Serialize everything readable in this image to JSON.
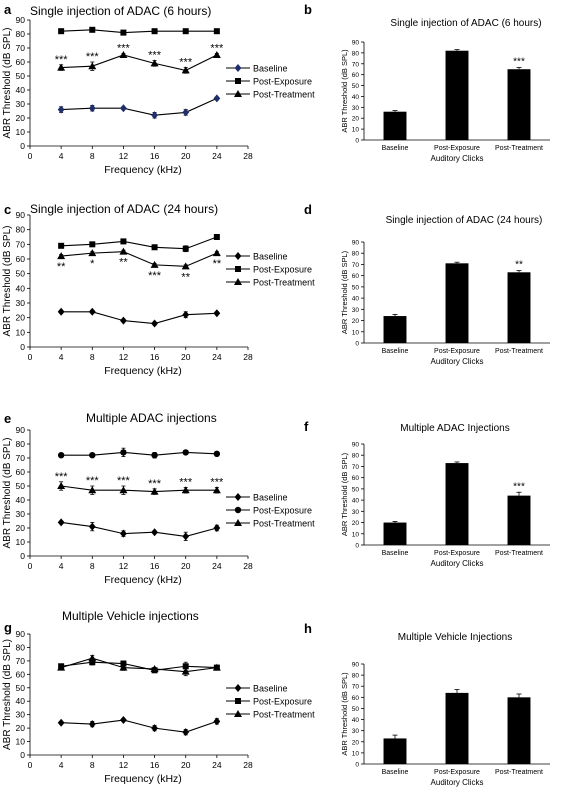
{
  "figure": {
    "panels": [
      {
        "letter": "a",
        "title": "Single injection of ADAC (6 hours)"
      },
      {
        "letter": "b",
        "title": "Single injection of ADAC (6 hours)"
      },
      {
        "letter": "c",
        "title": "Single injection of ADAC (24 hours)"
      },
      {
        "letter": "d",
        "title": "Single injection of ADAC (24 hours)"
      },
      {
        "letter": "e",
        "title": "Multiple ADAC injections"
      },
      {
        "letter": "f",
        "title": "Multiple ADAC Injections"
      },
      {
        "letter": "g",
        "title": "Multiple Vehicle injections"
      },
      {
        "letter": "h",
        "title": "Multiple Vehicle Injections"
      }
    ]
  },
  "colors": {
    "ink": "#000000",
    "baseline_marker_a": "#1f2f6b",
    "grid": "#999999"
  },
  "chart_data": [
    {
      "panel": "a",
      "type": "line",
      "title": "Single injection of ADAC (6 hours)",
      "xlabel": "Frequency (kHz)",
      "ylabel": "ABR Threshold (dB SPL)",
      "xlim": [
        0,
        28
      ],
      "ylim": [
        0,
        90
      ],
      "xticks": [
        0,
        4,
        8,
        12,
        16,
        20,
        24,
        28
      ],
      "yticks": [
        0,
        10,
        20,
        30,
        40,
        50,
        60,
        70,
        80,
        90
      ],
      "x": [
        4,
        8,
        12,
        16,
        20,
        24
      ],
      "legend_position": "right",
      "series": [
        {
          "name": "Baseline",
          "marker": "diamond",
          "values": [
            26,
            27,
            27,
            22,
            24,
            34
          ],
          "errors": [
            2,
            2,
            1,
            2,
            2,
            1
          ]
        },
        {
          "name": "Post-Exposure",
          "marker": "square",
          "values": [
            82,
            83,
            81,
            82,
            82,
            82
          ],
          "errors": [
            1,
            1,
            1,
            1,
            1,
            1
          ]
        },
        {
          "name": "Post-Treatment",
          "marker": "triangle",
          "values": [
            56,
            57,
            65,
            59,
            54,
            65
          ],
          "errors": [
            2,
            3,
            1,
            2,
            2,
            1
          ]
        }
      ],
      "annotations": [
        {
          "x": 4,
          "text": "***"
        },
        {
          "x": 8,
          "text": "***"
        },
        {
          "x": 12,
          "text": "***"
        },
        {
          "x": 16,
          "text": "***"
        },
        {
          "x": 20,
          "text": "***"
        },
        {
          "x": 24,
          "text": "***"
        }
      ]
    },
    {
      "panel": "b",
      "type": "bar",
      "title": "Single injection of ADAC (6 hours)",
      "xlabel": "Auditory Clicks",
      "ylabel": "ABR Threshold (dB SPL)",
      "ylim": [
        0,
        90
      ],
      "yticks": [
        0,
        10,
        20,
        30,
        40,
        50,
        60,
        70,
        80,
        90
      ],
      "categories": [
        "Baseline",
        "Post-Exposure",
        "Post-Treatment"
      ],
      "values": [
        26,
        82,
        65
      ],
      "errors": [
        1,
        1,
        1.5
      ],
      "annotations": [
        {
          "category": "Post-Treatment",
          "text": "***"
        }
      ]
    },
    {
      "panel": "c",
      "type": "line",
      "title": "Single injection of ADAC (24 hours)",
      "xlabel": "Frequency (kHz)",
      "ylabel": "ABR Threshold (dB SPL)",
      "xlim": [
        0,
        28
      ],
      "ylim": [
        0,
        90
      ],
      "xticks": [
        0,
        4,
        8,
        12,
        16,
        20,
        24,
        28
      ],
      "yticks": [
        0,
        10,
        20,
        30,
        40,
        50,
        60,
        70,
        80,
        90
      ],
      "x": [
        4,
        8,
        12,
        16,
        20,
        24
      ],
      "legend_position": "right",
      "series": [
        {
          "name": "Baseline",
          "marker": "diamond",
          "values": [
            24,
            24,
            18,
            16,
            22,
            23
          ],
          "errors": [
            1,
            1,
            1,
            1,
            2,
            1
          ]
        },
        {
          "name": "Post-Exposure",
          "marker": "square",
          "values": [
            69,
            70,
            72,
            68,
            67,
            75
          ],
          "errors": [
            1,
            1,
            1,
            1,
            2,
            1
          ]
        },
        {
          "name": "Post-Treatment",
          "marker": "triangle",
          "values": [
            62,
            64,
            65,
            56,
            55,
            64
          ],
          "errors": [
            1,
            1,
            1,
            1,
            1,
            1
          ]
        }
      ],
      "annotations": [
        {
          "x": 4,
          "text": "**"
        },
        {
          "x": 8,
          "text": "*"
        },
        {
          "x": 12,
          "text": "**"
        },
        {
          "x": 16,
          "text": "***"
        },
        {
          "x": 20,
          "text": "**"
        },
        {
          "x": 24,
          "text": "**"
        }
      ]
    },
    {
      "panel": "d",
      "type": "bar",
      "title": "Single injection of ADAC (24 hours)",
      "xlabel": "Auditory Clicks",
      "ylabel": "ABR Threshold (dB SPL)",
      "ylim": [
        0,
        90
      ],
      "yticks": [
        0,
        10,
        20,
        30,
        40,
        50,
        60,
        70,
        80,
        90
      ],
      "categories": [
        "Baseline",
        "Post-Exposure",
        "Post-Treatment"
      ],
      "values": [
        24,
        71,
        63
      ],
      "errors": [
        1.5,
        1,
        1.5
      ],
      "annotations": [
        {
          "category": "Post-Treatment",
          "text": "**"
        }
      ]
    },
    {
      "panel": "e",
      "type": "line",
      "title": "Multiple ADAC injections",
      "xlabel": "Frequency (kHz)",
      "ylabel": "ABR Threshold (dB SPL)",
      "xlim": [
        0,
        28
      ],
      "ylim": [
        0,
        90
      ],
      "xticks": [
        0,
        4,
        8,
        12,
        16,
        20,
        24,
        28
      ],
      "yticks": [
        0,
        10,
        20,
        30,
        40,
        50,
        60,
        70,
        80,
        90
      ],
      "x": [
        4,
        8,
        12,
        16,
        20,
        24
      ],
      "legend_position": "right",
      "series": [
        {
          "name": "Baseline",
          "marker": "diamond",
          "values": [
            24,
            21,
            16,
            17,
            14,
            20
          ],
          "errors": [
            1,
            3,
            2,
            1,
            3,
            2
          ]
        },
        {
          "name": "Post-Exposure",
          "marker": "circle",
          "values": [
            72,
            72,
            74,
            72,
            74,
            73
          ],
          "errors": [
            1,
            1,
            3,
            2,
            1,
            1
          ]
        },
        {
          "name": "Post-Treatment",
          "marker": "triangle",
          "values": [
            50,
            47,
            47,
            46,
            47,
            47
          ],
          "errors": [
            3,
            3,
            3,
            2,
            2,
            2
          ]
        }
      ],
      "annotations": [
        {
          "x": 4,
          "text": "***"
        },
        {
          "x": 8,
          "text": "***"
        },
        {
          "x": 12,
          "text": "***"
        },
        {
          "x": 16,
          "text": "***"
        },
        {
          "x": 20,
          "text": "***"
        },
        {
          "x": 24,
          "text": "***"
        }
      ]
    },
    {
      "panel": "f",
      "type": "bar",
      "title": "Multiple ADAC Injections",
      "xlabel": "Auditory Clicks",
      "ylabel": "ABR Threshold (dB SPL)",
      "ylim": [
        0,
        90
      ],
      "yticks": [
        0,
        10,
        20,
        30,
        40,
        50,
        60,
        70,
        80,
        90
      ],
      "categories": [
        "Baseline",
        "Post-Exposure",
        "Post-Treatment"
      ],
      "values": [
        20,
        73,
        44
      ],
      "errors": [
        1,
        1,
        3
      ],
      "annotations": [
        {
          "category": "Post-Treatment",
          "text": "***"
        }
      ]
    },
    {
      "panel": "g",
      "type": "line",
      "title": "Multiple Vehicle injections",
      "xlabel": "Frequency (kHz)",
      "ylabel": "ABR Threshold (dB SPL)",
      "xlim": [
        0,
        28
      ],
      "ylim": [
        0,
        90
      ],
      "xticks": [
        0,
        4,
        8,
        12,
        16,
        20,
        24,
        28
      ],
      "yticks": [
        0,
        10,
        20,
        30,
        40,
        50,
        60,
        70,
        80,
        90
      ],
      "x": [
        4,
        8,
        12,
        16,
        20,
        24
      ],
      "legend_position": "right",
      "series": [
        {
          "name": "Baseline",
          "marker": "diamond",
          "values": [
            24,
            23,
            26,
            20,
            17,
            25
          ],
          "errors": [
            1,
            2,
            1,
            2,
            2,
            2
          ]
        },
        {
          "name": "Post-Exposure",
          "marker": "square",
          "values": [
            66,
            69,
            68,
            63,
            66,
            65
          ],
          "errors": [
            1,
            2,
            2,
            1,
            3,
            1
          ]
        },
        {
          "name": "Post-Treatment",
          "marker": "triangle",
          "values": [
            65,
            72,
            65,
            64,
            62,
            65
          ],
          "errors": [
            1,
            2,
            2,
            1,
            3,
            1
          ]
        }
      ]
    },
    {
      "panel": "h",
      "type": "bar",
      "title": "Multiple Vehicle Injections",
      "xlabel": "Auditory Clicks",
      "ylabel": "ABR Threshold (dB SPL)",
      "ylim": [
        0,
        90
      ],
      "yticks": [
        0,
        10,
        20,
        30,
        40,
        50,
        60,
        70,
        80,
        90
      ],
      "categories": [
        "Baseline",
        "Post-Exposure",
        "Post-Treatment"
      ],
      "values": [
        23,
        64,
        60
      ],
      "errors": [
        3,
        3,
        3
      ]
    }
  ]
}
